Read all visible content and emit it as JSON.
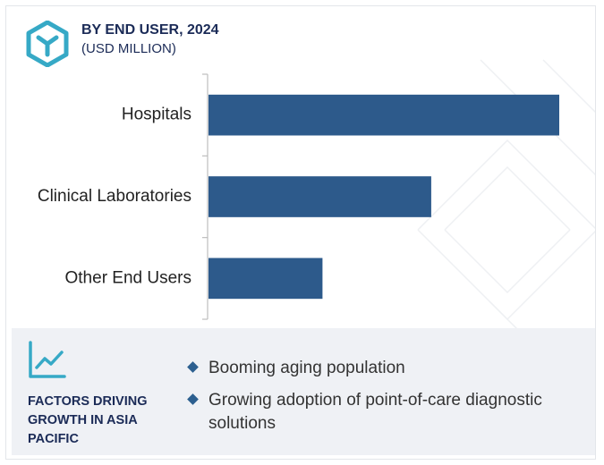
{
  "header": {
    "title": "BY END USER, 2024",
    "subtitle": "(USD MILLION)"
  },
  "colors": {
    "bar": "#2d5a8b",
    "title": "#1b2b57",
    "panel": "#eff1f5",
    "accent": "#36a9c6"
  },
  "icons": {
    "logo": "hexagon-logo-icon",
    "trend": "trend-chart-icon",
    "bullet": "diamond-bullet-icon"
  },
  "chart_data": {
    "type": "bar",
    "orientation": "horizontal",
    "categories": [
      "Hospitals",
      "Clinical Laboratories",
      "Other End Users"
    ],
    "values": [
      100,
      63.5,
      32.5
    ],
    "xlim": [
      0,
      100
    ],
    "value_axis_labeled": false,
    "title": "BY END USER, 2024",
    "subtitle": "(USD MILLION)",
    "grid": false,
    "legend": "none"
  },
  "factors": {
    "title": "FACTORS DRIVING GROWTH IN ASIA PACIFIC",
    "items": [
      "Booming aging population",
      "Growing adoption of point-of-care diagnostic solutions"
    ]
  }
}
